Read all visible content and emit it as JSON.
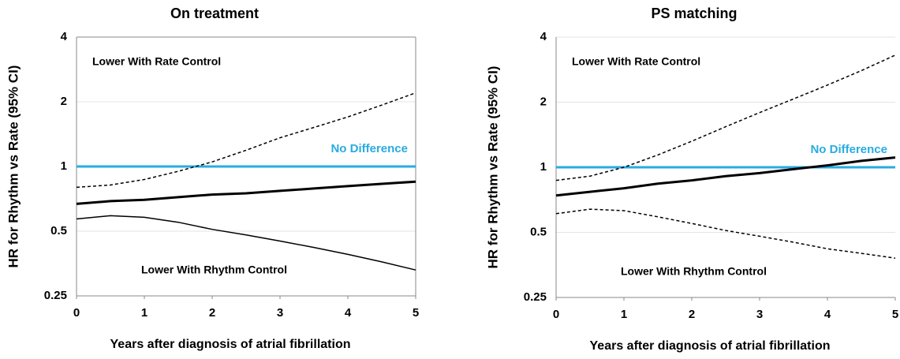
{
  "chart_data": [
    {
      "type": "line",
      "title": "On treatment",
      "x_label": "Years after diagnosis of atrial fibrillation",
      "y_label": "HR for Rhythm vs Rate (95% CI)",
      "log_y": true,
      "grid": true,
      "frame": true,
      "xlim": [
        0,
        5
      ],
      "xticks": [
        0,
        1,
        2,
        3,
        4,
        5
      ],
      "ylim": [
        0.25,
        4
      ],
      "yticks": [
        0.25,
        0.5,
        1,
        2,
        4
      ],
      "x": [
        0,
        0.5,
        1,
        1.5,
        2,
        2.5,
        3,
        3.5,
        4,
        4.5,
        5
      ],
      "series": [
        {
          "color": "#000000",
          "width": 3,
          "dash": false,
          "values": [
            0.67,
            0.69,
            0.7,
            0.72,
            0.74,
            0.75,
            0.77,
            0.79,
            0.81,
            0.83,
            0.85
          ]
        },
        {
          "color": "#000000",
          "width": 1.5,
          "dash": true,
          "values": [
            0.8,
            0.82,
            0.87,
            0.95,
            1.05,
            1.19,
            1.36,
            1.52,
            1.7,
            1.93,
            2.2
          ]
        },
        {
          "color": "#000000",
          "width": 1.5,
          "dash": false,
          "values": [
            0.57,
            0.59,
            0.58,
            0.55,
            0.51,
            0.48,
            0.45,
            0.42,
            0.39,
            0.36,
            0.33
          ]
        }
      ],
      "reference_line": {
        "value": 1,
        "label": "No Difference",
        "color": "#29abe2"
      },
      "annotations": [
        "Lower With Rate Control",
        "Lower With Rhythm Control"
      ]
    },
    {
      "type": "line",
      "title": "PS matching",
      "x_label": "Years after diagnosis of atrial fibrillation",
      "y_label": "HR for Rhythm vs Rate (95% CI)",
      "log_y": true,
      "grid": true,
      "frame": false,
      "xlim": [
        0,
        5
      ],
      "xticks": [
        0,
        1,
        2,
        3,
        4,
        5
      ],
      "ylim": [
        0.25,
        4
      ],
      "yticks": [
        0.25,
        0.5,
        1,
        2,
        4
      ],
      "x": [
        0,
        0.5,
        1,
        1.5,
        2,
        2.5,
        3,
        3.5,
        4,
        4.5,
        5
      ],
      "series": [
        {
          "color": "#000000",
          "width": 3,
          "dash": false,
          "values": [
            0.74,
            0.77,
            0.8,
            0.84,
            0.87,
            0.91,
            0.94,
            0.98,
            1.02,
            1.07,
            1.11
          ]
        },
        {
          "color": "#000000",
          "width": 1.5,
          "dash": true,
          "values": [
            0.87,
            0.91,
            1.0,
            1.14,
            1.32,
            1.54,
            1.79,
            2.07,
            2.4,
            2.8,
            3.3
          ]
        },
        {
          "color": "#000000",
          "width": 1.5,
          "dash": true,
          "values": [
            0.61,
            0.64,
            0.63,
            0.59,
            0.55,
            0.51,
            0.48,
            0.45,
            0.42,
            0.4,
            0.38
          ]
        }
      ],
      "reference_line": {
        "value": 1,
        "label": "No Difference",
        "color": "#29abe2"
      },
      "annotations": [
        "Lower With Rate Control",
        "Lower With Rhythm Control"
      ]
    }
  ]
}
